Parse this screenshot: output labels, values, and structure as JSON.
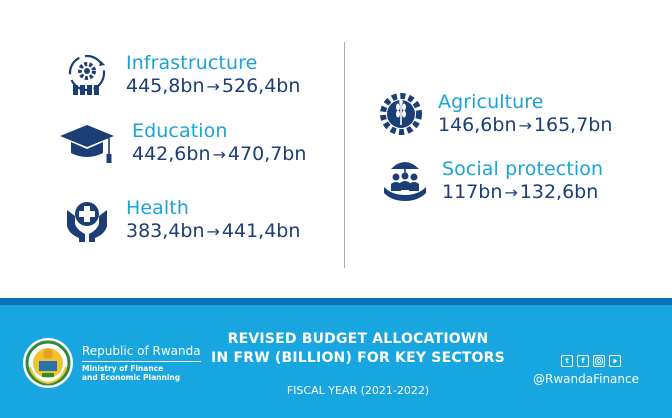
{
  "sectors": {
    "infrastructure": {
      "name": "Infrastructure",
      "from": "445,8bn",
      "to": "526,4bn",
      "icon": "gear-cycle-icon"
    },
    "education": {
      "name": "Education",
      "from": "442,6bn",
      "to": "470,7bn",
      "icon": "graduation-cap-icon"
    },
    "health": {
      "name": "Health",
      "from": "383,4bn",
      "to": "441,4bn",
      "icon": "hands-cross-icon"
    },
    "agriculture": {
      "name": "Agriculture",
      "from": "146,6bn",
      "to": "165,7bn",
      "icon": "wheat-gear-icon"
    },
    "social": {
      "name": "Social protection",
      "from": "117bn",
      "to": "132,6bn",
      "icon": "umbrella-family-icon"
    }
  },
  "arrow": "→",
  "footer": {
    "republic": "Republic of Rwanda",
    "ministry_line1": "Ministry of Finance",
    "ministry_line2": "and Economic Planning",
    "headline_line1": "REVISED BUDGET ALLOCATIOWN",
    "headline_line2": "IN FRW (BILLION)  FOR KEY SECTORS",
    "fiscal_year": "FISCAL YEAR (2021-2022)",
    "handle": "@RwandaFinance",
    "social_icons": [
      "twitter-icon",
      "facebook-icon",
      "instagram-icon",
      "youtube-icon"
    ]
  },
  "colors": {
    "sector_name": "#1aa3d8",
    "sector_values": "#1b3f74",
    "icon": "#1b3f74",
    "band": "#18a6e0",
    "band_top": "#0d6fb8"
  }
}
